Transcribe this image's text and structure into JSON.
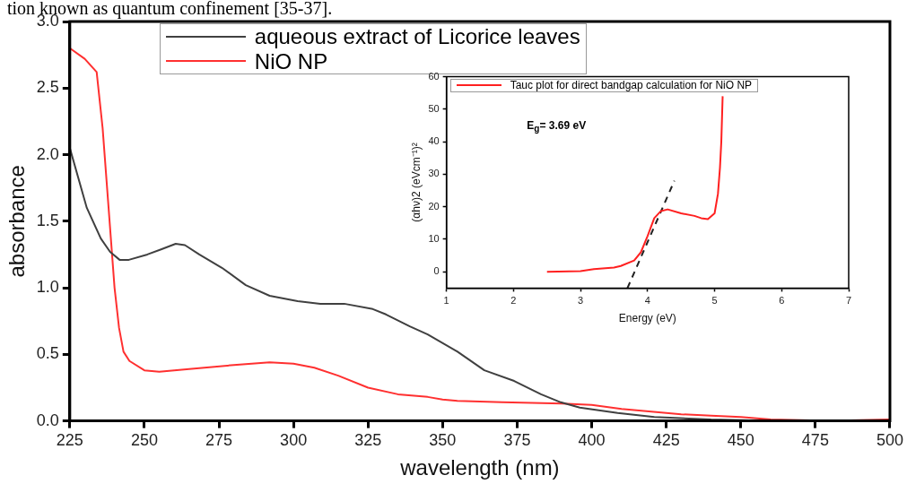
{
  "chart_data": [
    {
      "type": "line",
      "xlabel": "wavelength (nm)",
      "ylabel": "absorbance",
      "legend": "top",
      "grid": false,
      "annotations": [
        "tion known as quantum confinement [35-37]."
      ],
      "xlim": [
        225,
        500
      ],
      "xticks": [
        225,
        250,
        275,
        300,
        325,
        350,
        375,
        400,
        425,
        450,
        475,
        500
      ],
      "ylim": [
        0,
        3.0
      ],
      "yticks": [
        {
          "value": 0,
          "label": "0.0"
        },
        {
          "value": 0.5,
          "label": "0.5"
        },
        {
          "value": 1,
          "label": "1.0"
        },
        {
          "value": 1.5,
          "label": "1.5"
        },
        {
          "value": 2,
          "label": "2.0"
        },
        {
          "value": 2.5,
          "label": "2.5"
        },
        {
          "value": 3,
          "label": "3.0"
        }
      ],
      "series": [
        {
          "name": "aqueous extract of Licorice leaves",
          "color": "#404040",
          "x": [
            225,
            230.7,
            235.4,
            238.5,
            241.7,
            244.8,
            251,
            255.8,
            260.5,
            263.6,
            268.4,
            276,
            284,
            292,
            301.4,
            309,
            317,
            326.6,
            331,
            339,
            345,
            355,
            364,
            374,
            383,
            389.6,
            396,
            408.7,
            421,
            440,
            459,
            500
          ],
          "values": [
            2.05,
            1.6,
            1.37,
            1.27,
            1.21,
            1.21,
            1.25,
            1.29,
            1.33,
            1.32,
            1.25,
            1.15,
            1.02,
            0.94,
            0.9,
            0.88,
            0.88,
            0.84,
            0.8,
            0.71,
            0.65,
            0.52,
            0.38,
            0.3,
            0.2,
            0.14,
            0.1,
            0.06,
            0.03,
            0.01,
            0,
            0
          ]
        },
        {
          "name": "NiO NP",
          "color": "#ff3030",
          "x": [
            225,
            230,
            234,
            236,
            238,
            240,
            241.5,
            243,
            245,
            250,
            255,
            265,
            280,
            292,
            300,
            307,
            315,
            325,
            335,
            345,
            350,
            355,
            370,
            390,
            400,
            410,
            420,
            430,
            440,
            450,
            460,
            480,
            500
          ],
          "values": [
            2.8,
            2.72,
            2.62,
            2.2,
            1.6,
            1.0,
            0.7,
            0.52,
            0.45,
            0.38,
            0.37,
            0.39,
            0.42,
            0.44,
            0.43,
            0.4,
            0.34,
            0.25,
            0.2,
            0.18,
            0.16,
            0.15,
            0.14,
            0.13,
            0.12,
            0.09,
            0.07,
            0.05,
            0.04,
            0.03,
            0.01,
            0,
            0.01
          ]
        }
      ]
    },
    {
      "type": "line",
      "xlabel": "Energy (eV)",
      "ylabel": "(αhν)2 (eVcm⁻¹)²",
      "legend": "top",
      "grid": false,
      "annotations": [
        "E$_{g}$= 3.69 eV"
      ],
      "xlim": [
        1,
        7
      ],
      "xticks": [
        1,
        2,
        3,
        4,
        5,
        6,
        7
      ],
      "ylim": [
        -5,
        60
      ],
      "yticks": [
        0,
        10,
        20,
        30,
        40,
        50,
        60
      ],
      "series": [
        {
          "name": "Tauc plot for direct bandgap calculation for NiO NP",
          "color": "#ff2020",
          "x": [
            2.5,
            3.0,
            3.2,
            3.5,
            3.6,
            3.8,
            3.9,
            4.0,
            4.1,
            4.2,
            4.3,
            4.5,
            4.7,
            4.8,
            4.9,
            5.0,
            5.05,
            5.08,
            5.1,
            5.12
          ],
          "values": [
            0,
            0.2,
            0.8,
            1.3,
            1.8,
            3.5,
            6,
            11,
            16.5,
            18.7,
            19.2,
            18,
            17.2,
            16.5,
            16.2,
            18,
            24,
            32,
            40,
            54
          ]
        },
        {
          "type": "line",
          "color": "#202020",
          "line_style": "dashed",
          "x": [
            3.7,
            4.4
          ],
          "values": [
            -5,
            28
          ]
        }
      ]
    }
  ]
}
